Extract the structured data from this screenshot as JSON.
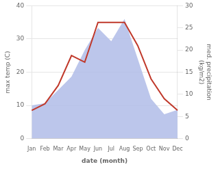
{
  "chart_data": {
    "type": "line",
    "categories": [
      "Jan",
      "Feb",
      "Mar",
      "Apr",
      "May",
      "Jun",
      "Jul",
      "Aug",
      "Sep",
      "Oct",
      "Nov",
      "Dec"
    ],
    "series": [
      {
        "type": "area",
        "color": "#b0bce8",
        "axis": "y2",
        "values": [
          7.5,
          8.0,
          11.0,
          14.0,
          20.0,
          25.0,
          22.0,
          27.0,
          18.0,
          9.0,
          5.5,
          6.5
        ]
      },
      {
        "type": "line",
        "color": "#c0392b",
        "values": [
          8.5,
          10.5,
          16.0,
          25.0,
          23.0,
          35.0,
          35.0,
          35.0,
          28.0,
          18.0,
          12.0,
          8.5
        ]
      }
    ],
    "xlabel": "date (month)",
    "ylabel": "max temp (C)",
    "y2label": "med. precipitation\n(kg/m2)",
    "ylim": [
      0,
      40
    ],
    "yticks": [
      0,
      10,
      20,
      30,
      40
    ],
    "y2lim": [
      0,
      30
    ],
    "y2ticks": [
      0,
      5,
      10,
      15,
      20,
      25,
      30
    ],
    "grid": true
  }
}
